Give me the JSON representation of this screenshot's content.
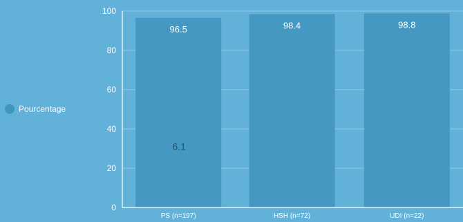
{
  "chart_data": {
    "type": "bar",
    "categories": [
      "PS (n=197)",
      "HSH (n=72)",
      "UDI (n=22)"
    ],
    "series": [
      {
        "name": "Pourcentage",
        "values": [
          96.5,
          98.4,
          98.8
        ],
        "value_labels": [
          "96.5",
          "98.4",
          "98.8"
        ]
      }
    ],
    "annotations": [
      {
        "text": "6.1",
        "category": "PS (n=197)",
        "y": 31
      }
    ],
    "ylim": [
      0,
      100
    ],
    "yticks": [
      0,
      20,
      40,
      60,
      80,
      100
    ],
    "grid": true,
    "legend_position": "left",
    "colors": {
      "background": "#61b1d9",
      "bar": "#4598c1",
      "legend_swatch": "#3d96bf",
      "grid": "#8fcbe6",
      "axis": "#ffffff",
      "text": "#ffffff",
      "annotation": "#24546e"
    }
  }
}
